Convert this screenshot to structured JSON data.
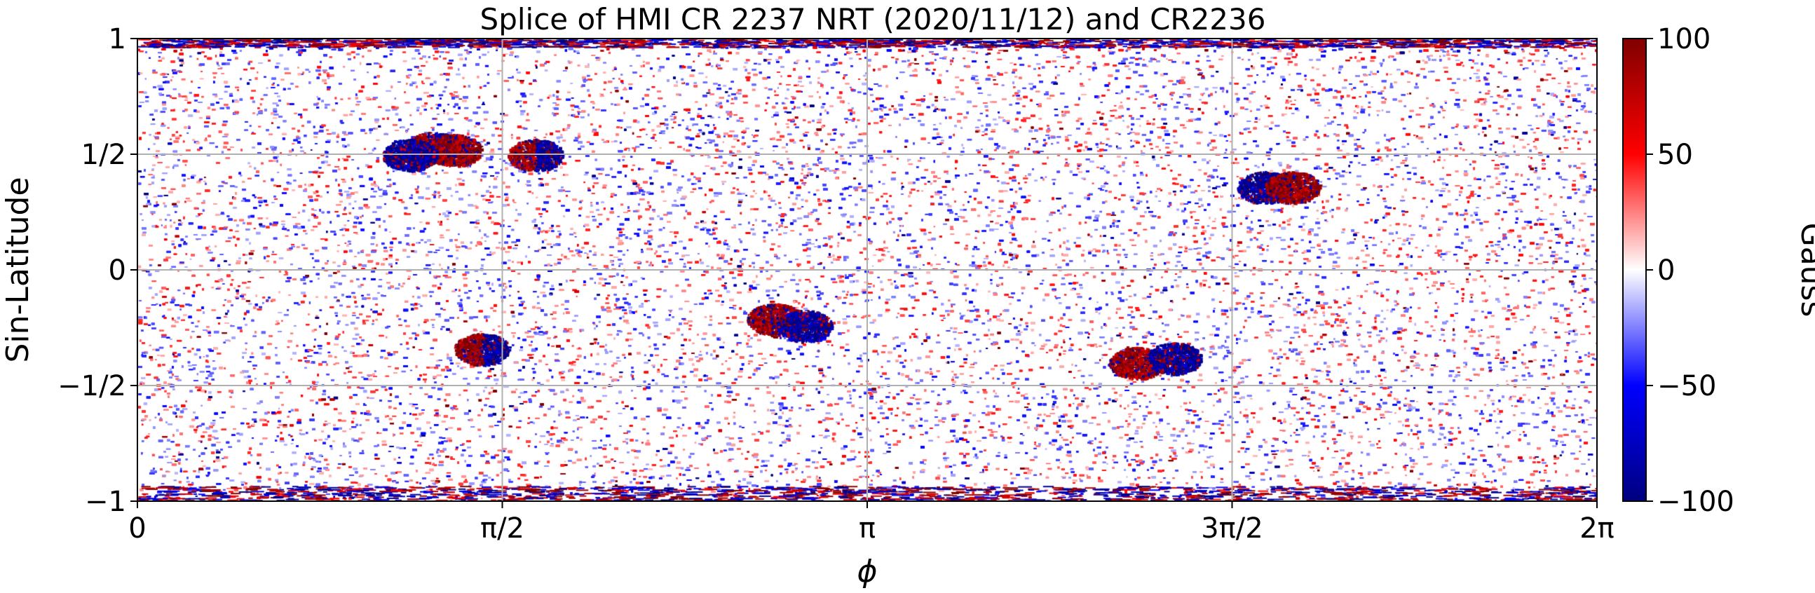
{
  "chart_data": {
    "type": "heatmap",
    "title": "Splice of HMI CR 2237 NRT (2020/11/12) and CR2236",
    "xlabel": "ϕ",
    "ylabel": "Sin-Latitude",
    "xlim": [
      0,
      6.2832
    ],
    "ylim": [
      -1,
      1
    ],
    "x_ticks": [
      {
        "value": 0,
        "label": "0"
      },
      {
        "value": 1.5708,
        "label": "π/2"
      },
      {
        "value": 3.1416,
        "label": "π"
      },
      {
        "value": 4.7124,
        "label": "3π/2"
      },
      {
        "value": 6.2832,
        "label": "2π"
      }
    ],
    "y_ticks": [
      {
        "value": 1,
        "label": "1"
      },
      {
        "value": 0.5,
        "label": "1/2"
      },
      {
        "value": 0,
        "label": "0"
      },
      {
        "value": -0.5,
        "label": "−1/2"
      },
      {
        "value": -1,
        "label": "−1"
      }
    ],
    "grid": true,
    "colorbar": {
      "label": "Gauss",
      "range": [
        -100,
        100
      ],
      "colormap": "seismic",
      "ticks": [
        {
          "value": 100,
          "label": "100"
        },
        {
          "value": 50,
          "label": "50"
        },
        {
          "value": 0,
          "label": "0"
        },
        {
          "value": -50,
          "label": "−50"
        },
        {
          "value": -100,
          "label": "−100"
        }
      ]
    },
    "colors": {
      "positive_max": "#800000",
      "positive_mid": "#ff0000",
      "zero": "#ffffff",
      "negative_mid": "#0000ff",
      "negative_max": "#000080",
      "grid": "#b0b0b0"
    },
    "active_regions": [
      {
        "x": 1.27,
        "y": 0.53,
        "polarity": "bipolar",
        "strength": 100
      },
      {
        "x": 1.36,
        "y": 0.52,
        "polarity": "positive",
        "strength": 100
      },
      {
        "x": 1.17,
        "y": 0.5,
        "polarity": "negative",
        "strength": 100
      },
      {
        "x": 1.71,
        "y": 0.5,
        "polarity": "bipolar",
        "strength": 100
      },
      {
        "x": 1.48,
        "y": -0.34,
        "polarity": "bipolar",
        "strength": 100
      },
      {
        "x": 2.74,
        "y": -0.21,
        "polarity": "positive",
        "strength": 100
      },
      {
        "x": 2.87,
        "y": -0.24,
        "polarity": "negative",
        "strength": 100
      },
      {
        "x": 4.3,
        "y": -0.4,
        "polarity": "positive",
        "strength": 100
      },
      {
        "x": 4.46,
        "y": -0.38,
        "polarity": "negative",
        "strength": 100
      },
      {
        "x": 4.85,
        "y": 0.36,
        "polarity": "negative",
        "strength": 100
      },
      {
        "x": 4.97,
        "y": 0.36,
        "polarity": "positive",
        "strength": 100
      }
    ]
  }
}
